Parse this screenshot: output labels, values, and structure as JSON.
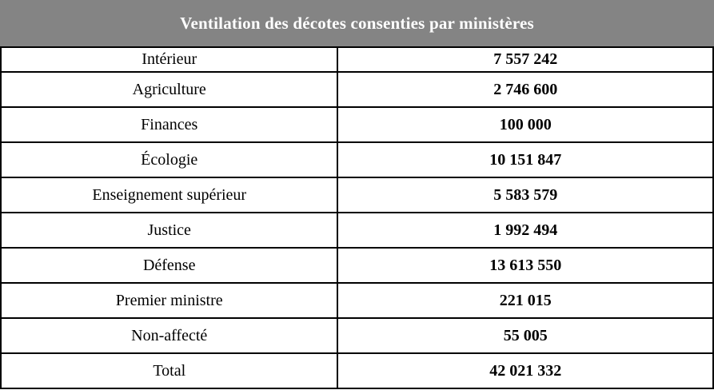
{
  "header": {
    "title": "Ventilation des décotes consenties par ministères"
  },
  "table": {
    "rows": [
      {
        "label": "Intérieur",
        "value": "7 557 242"
      },
      {
        "label": "Agriculture",
        "value": "2 746 600"
      },
      {
        "label": "Finances",
        "value": "100 000"
      },
      {
        "label": "Écologie",
        "value": "10 151 847"
      },
      {
        "label": "Enseignement supérieur",
        "value": "5 583 579"
      },
      {
        "label": "Justice",
        "value": "1 992 494"
      },
      {
        "label": "Défense",
        "value": "13 613 550"
      },
      {
        "label": "Premier ministre",
        "value": "221 015"
      },
      {
        "label": "Non-affecté",
        "value": "55 005"
      },
      {
        "label": "Total",
        "value": "42 021 332"
      }
    ]
  },
  "colors": {
    "header_bg": "#848484",
    "header_text": "#ffffff",
    "border": "#000000",
    "row_bg": "#ffffff",
    "text": "#000000"
  }
}
